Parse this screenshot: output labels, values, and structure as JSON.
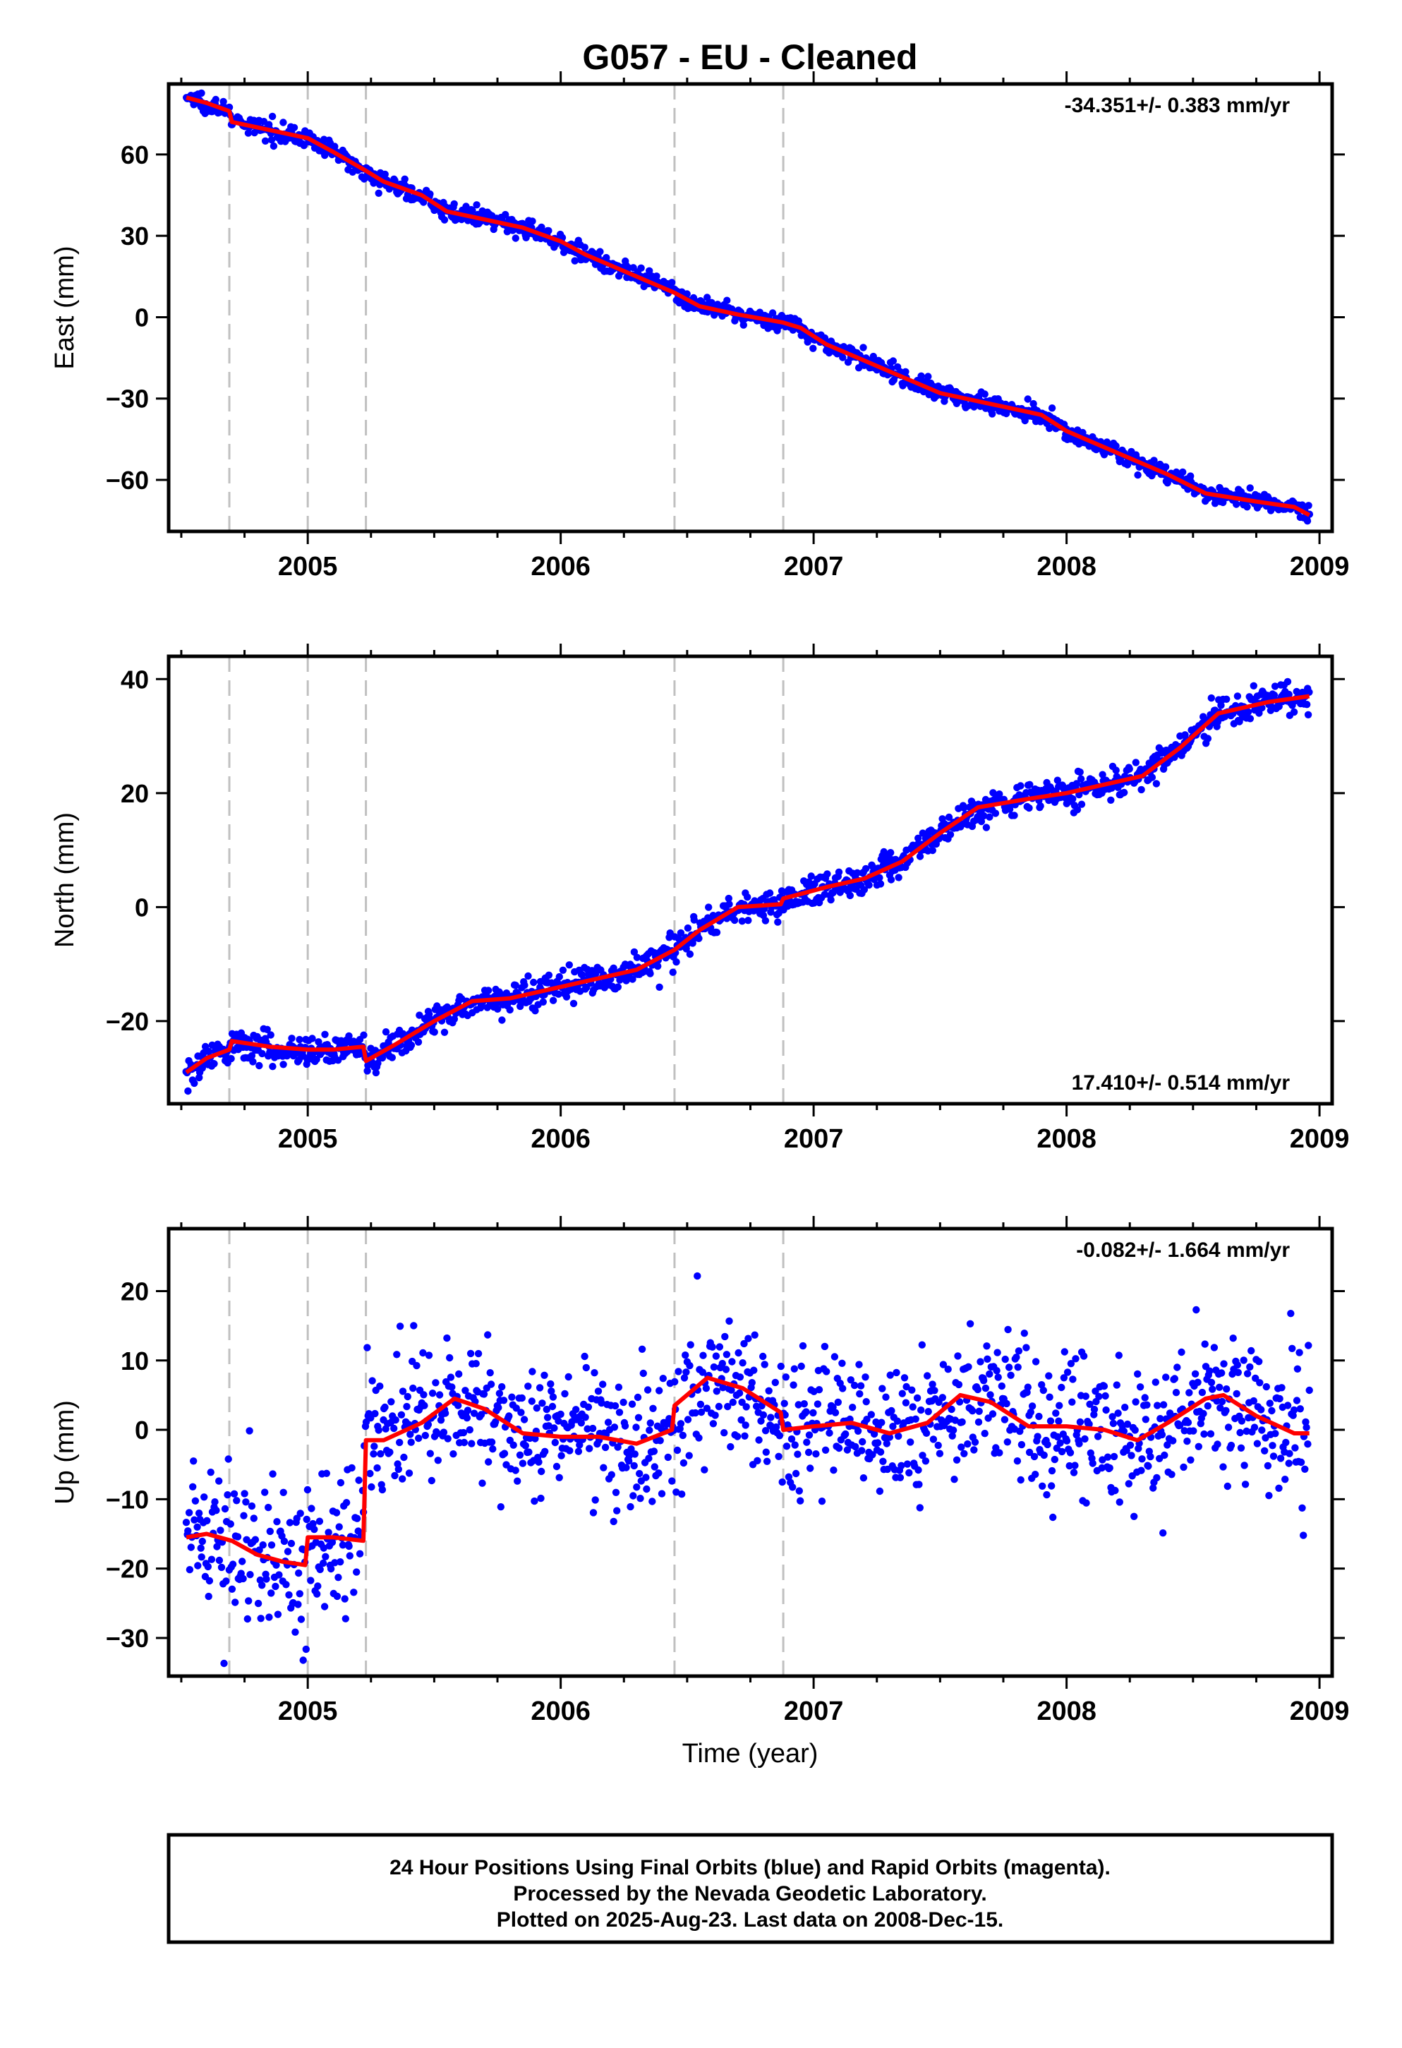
{
  "figure": {
    "title": "G057  - EU - Cleaned",
    "xlabel": "Time (year)",
    "footer": {
      "line1": "24 Hour Positions Using Final Orbits (blue) and Rapid Orbits (magenta).",
      "line2": "Processed by the Nevada Geodetic Laboratory.",
      "line3": "Plotted on 2025-Aug-23. Last data on 2008-Dec-15."
    }
  },
  "colors": {
    "points": "#0000ff",
    "model": "#ff0000",
    "offset_lines": "#c0c0c0",
    "frame": "#000000"
  },
  "chart_data": [
    {
      "type": "scatter",
      "name": "east",
      "ylabel": "East (mm)",
      "xlim": [
        2004.45,
        2009.05
      ],
      "ylim": [
        -79,
        86
      ],
      "xticks": [
        2005,
        2006,
        2007,
        2008,
        2009
      ],
      "yticks": [
        -60,
        -30,
        0,
        30,
        60
      ],
      "rate_label": "-34.351+/- 0.383 mm/yr",
      "rate_position": "top-right",
      "offset_epochs": [
        2004.69,
        2005.0,
        2005.23,
        2006.45,
        2006.88
      ],
      "noise_sd": 1.6,
      "data_start": 2004.52,
      "data_end": 2008.96,
      "model_x": [
        2004.52,
        2004.6,
        2004.69,
        2004.7,
        2004.85,
        2005.0,
        2005.1,
        2005.23,
        2005.3,
        2005.45,
        2005.55,
        2005.7,
        2005.85,
        2006.0,
        2006.1,
        2006.25,
        2006.45,
        2006.55,
        2006.7,
        2006.88,
        2006.95,
        2007.05,
        2007.2,
        2007.35,
        2007.5,
        2007.65,
        2007.8,
        2007.9,
        2008.0,
        2008.2,
        2008.4,
        2008.55,
        2008.75,
        2008.9,
        2008.96
      ],
      "model_y": [
        81,
        79,
        76,
        72,
        69,
        66,
        61,
        54,
        50,
        45,
        39,
        36,
        33,
        28,
        23,
        17,
        9,
        4,
        1,
        -2,
        -4,
        -10,
        -16,
        -22,
        -28,
        -31,
        -34,
        -36,
        -42,
        -50,
        -58,
        -65,
        -68,
        -70,
        -73
      ]
    },
    {
      "type": "scatter",
      "name": "north",
      "ylabel": "North (mm)",
      "xlim": [
        2004.45,
        2009.05
      ],
      "ylim": [
        -34.5,
        44
      ],
      "xticks": [
        2005,
        2006,
        2007,
        2008,
        2009
      ],
      "yticks": [
        -20,
        0,
        20,
        40
      ],
      "rate_label": "17.410+/- 0.514 mm/yr",
      "rate_position": "bottom-right",
      "offset_epochs": [
        2004.69,
        2005.0,
        2005.23,
        2006.45,
        2006.88
      ],
      "noise_sd": 1.3,
      "data_start": 2004.52,
      "data_end": 2008.96,
      "model_x": [
        2004.52,
        2004.6,
        2004.69,
        2004.7,
        2004.85,
        2005.0,
        2005.1,
        2005.22,
        2005.23,
        2005.35,
        2005.5,
        2005.65,
        2005.8,
        2006.0,
        2006.15,
        2006.3,
        2006.45,
        2006.55,
        2006.7,
        2006.87,
        2006.88,
        2007.05,
        2007.2,
        2007.35,
        2007.5,
        2007.65,
        2007.85,
        2008.0,
        2008.15,
        2008.3,
        2008.45,
        2008.6,
        2008.8,
        2008.96
      ],
      "model_y": [
        -29,
        -26.5,
        -25,
        -23.5,
        -24.5,
        -25,
        -25,
        -24.5,
        -27,
        -24,
        -20,
        -16.5,
        -16,
        -14,
        -12.5,
        -11,
        -7.5,
        -4,
        0,
        0.5,
        1.5,
        3.5,
        5,
        8,
        13,
        17.5,
        19,
        20,
        21.5,
        23,
        28,
        34,
        36,
        37
      ]
    },
    {
      "type": "scatter",
      "name": "up",
      "ylabel": "Up (mm)",
      "xlim": [
        2004.45,
        2009.05
      ],
      "ylim": [
        -35.5,
        29
      ],
      "xticks": [
        2005,
        2006,
        2007,
        2008,
        2009
      ],
      "yticks": [
        -30,
        -20,
        -10,
        0,
        10,
        20
      ],
      "rate_label": "-0.082+/- 1.664 mm/yr",
      "rate_position": "top-right",
      "offset_epochs": [
        2004.69,
        2005.0,
        2005.23,
        2006.45,
        2006.88
      ],
      "noise_sd": 5.0,
      "data_start": 2004.52,
      "data_end": 2008.96,
      "model_x": [
        2004.52,
        2004.6,
        2004.7,
        2004.8,
        2004.9,
        2004.99,
        2005.0,
        2005.1,
        2005.22,
        2005.23,
        2005.3,
        2005.45,
        2005.58,
        2005.7,
        2005.85,
        2006.0,
        2006.15,
        2006.3,
        2006.44,
        2006.45,
        2006.58,
        2006.72,
        2006.87,
        2006.88,
        2007.0,
        2007.15,
        2007.3,
        2007.45,
        2007.58,
        2007.7,
        2007.85,
        2008.0,
        2008.15,
        2008.28,
        2008.4,
        2008.55,
        2008.62,
        2008.75,
        2008.9,
        2008.96
      ],
      "model_y": [
        -15.5,
        -15,
        -16,
        -18,
        -19,
        -19.5,
        -15.5,
        -15.5,
        -16,
        -1.5,
        -1.5,
        1,
        4.5,
        3,
        -0.5,
        -1,
        -1,
        -2,
        0,
        3.5,
        7.5,
        6,
        2.5,
        0,
        0.5,
        1,
        -0.5,
        1,
        5,
        4,
        0.5,
        0.5,
        0,
        -1.5,
        1,
        4.5,
        5,
        2,
        -0.5,
        -0.5
      ]
    }
  ]
}
